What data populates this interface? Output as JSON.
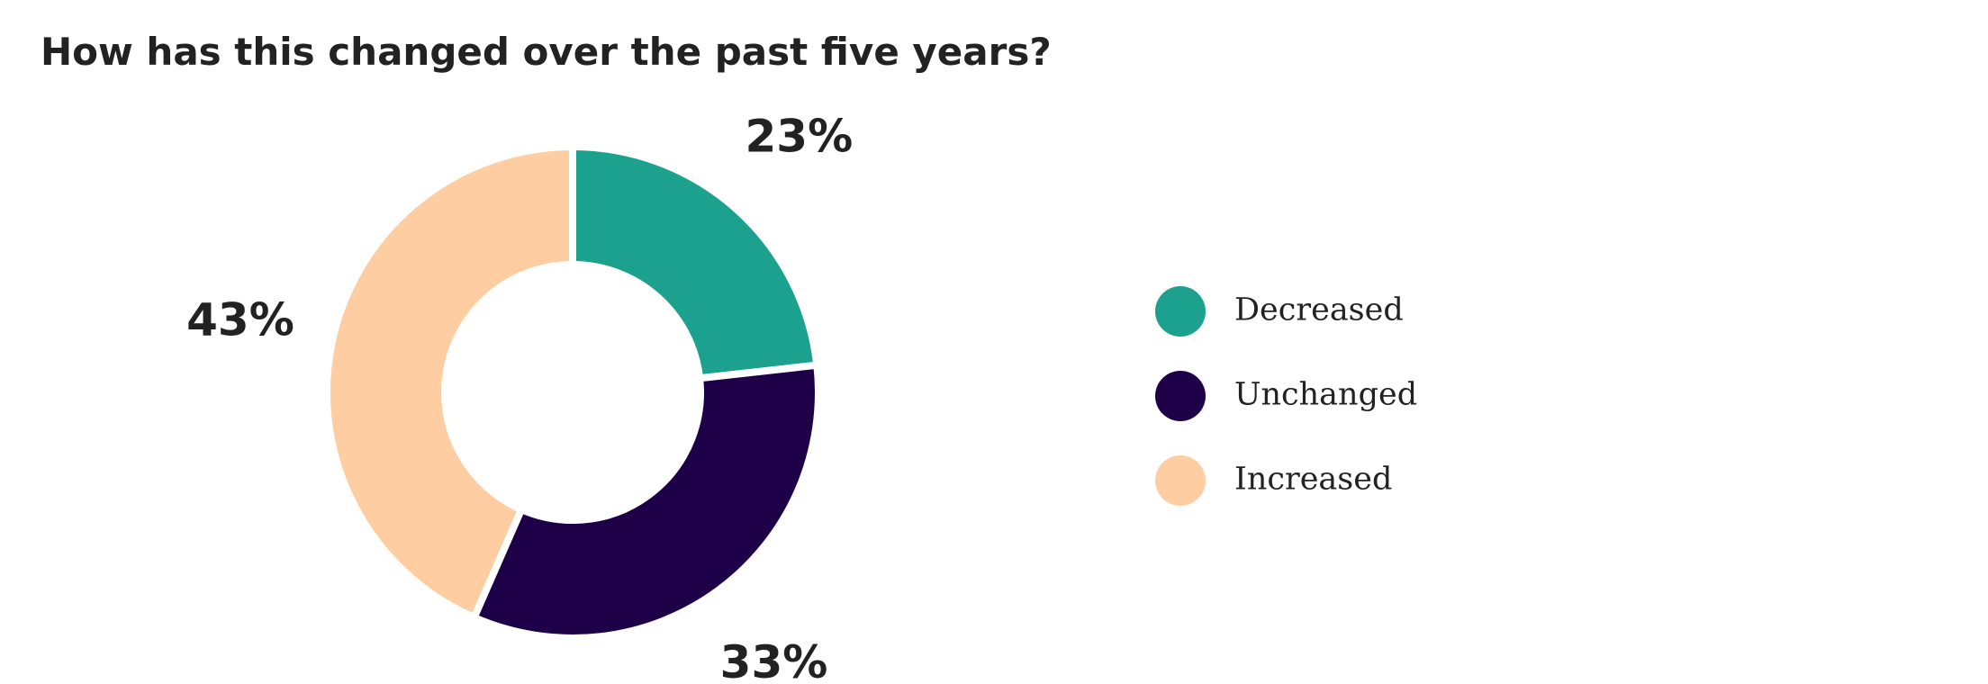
{
  "chart_data": {
    "type": "pie",
    "donut": true,
    "title": "How has this changed over the past five years?",
    "categories": [
      "Decreased",
      "Unchanged",
      "Increased"
    ],
    "values": [
      23,
      33,
      43
    ],
    "value_labels": [
      "23%",
      "33%",
      "43%"
    ],
    "colors": [
      "#1ba18e",
      "#1e0049",
      "#fecda1"
    ],
    "legend": "right"
  }
}
